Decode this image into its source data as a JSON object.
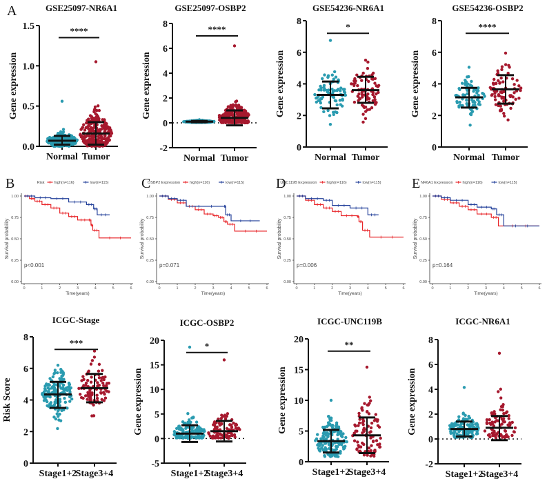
{
  "panel_letters": [
    "A",
    "B",
    "C",
    "D",
    "E"
  ],
  "colors": {
    "group1": "#2a9bb0",
    "group2": "#a6192e",
    "km_high": "#e8262a",
    "km_low": "#23409a",
    "bars": "#111111"
  },
  "chart_data": [
    {
      "type": "scatter",
      "title": "GSE25097-NR6A1",
      "ylabel": "Gene expression",
      "categories": [
        "Normal",
        "Tumor"
      ],
      "ylim": [
        0,
        1.5
      ],
      "yticks": [
        "0.0",
        "0.5",
        "1.0",
        "1.5"
      ],
      "ytick_values": [
        0,
        0.5,
        1.0,
        1.5
      ],
      "significance": "****",
      "groups": [
        {
          "mean": 0.07,
          "sd_upper": 0.13,
          "sd_lower": 0.02,
          "min": 0.0,
          "max": 0.56,
          "n": 240
        },
        {
          "mean": 0.16,
          "sd_upper": 0.3,
          "sd_lower": 0.02,
          "min": 0.0,
          "max": 1.05,
          "n": 270
        }
      ]
    },
    {
      "type": "scatter",
      "title": "GSE25097-OSBP2",
      "ylabel": "Gene expression",
      "categories": [
        "Normal",
        "Tumor"
      ],
      "ylim": [
        -2,
        8
      ],
      "yticks": [
        "-2",
        "0",
        "2",
        "4",
        "6",
        "8"
      ],
      "ytick_values": [
        -2,
        0,
        2,
        4,
        6,
        8
      ],
      "significance": "****",
      "zero_line": true,
      "groups": [
        {
          "mean": 0.1,
          "sd_upper": 0.15,
          "sd_lower": 0.05,
          "min": 0.02,
          "max": 0.25,
          "n": 240
        },
        {
          "mean": 0.4,
          "sd_upper": 1.0,
          "sd_lower": -0.2,
          "min": 0.0,
          "max": 6.2,
          "n": 270
        }
      ]
    },
    {
      "type": "scatter",
      "title": "GSE54236-NR6A1",
      "ylabel": "Gene expression",
      "categories": [
        "Normal",
        "Tumor"
      ],
      "ylim": [
        0,
        8
      ],
      "yticks": [
        "0",
        "2",
        "4",
        "6",
        "8"
      ],
      "ytick_values": [
        0,
        2,
        4,
        6,
        8
      ],
      "significance": "*",
      "groups": [
        {
          "mean": 3.3,
          "sd_upper": 4.15,
          "sd_lower": 2.45,
          "min": 1.3,
          "max": 6.75,
          "n": 80
        },
        {
          "mean": 3.6,
          "sd_upper": 4.45,
          "sd_lower": 2.8,
          "min": 1.5,
          "max": 5.5,
          "n": 81
        }
      ]
    },
    {
      "type": "scatter",
      "title": "GSE54236-OSBP2",
      "ylabel": "Gene expression",
      "categories": [
        "Normal",
        "Tumor"
      ],
      "ylim": [
        0,
        8
      ],
      "yticks": [
        "0",
        "2",
        "4",
        "6",
        "8"
      ],
      "ytick_values": [
        0,
        2,
        4,
        6,
        8
      ],
      "significance": "****",
      "groups": [
        {
          "mean": 3.15,
          "sd_upper": 3.75,
          "sd_lower": 2.5,
          "min": 1.3,
          "max": 5.05,
          "n": 80
        },
        {
          "mean": 3.65,
          "sd_upper": 4.55,
          "sd_lower": 2.75,
          "min": 1.6,
          "max": 5.95,
          "n": 81
        }
      ]
    },
    {
      "type": "line",
      "subtype": "kaplan-meier",
      "legend_title": "Risk",
      "legend": [
        "high(n=116)",
        "low(n=115)"
      ],
      "ylabel": "Survival probability",
      "xlabel": "Time(years)",
      "xlim": [
        0,
        6
      ],
      "ylim": [
        0,
        1
      ],
      "xticks": [
        "0",
        "1",
        "2",
        "3",
        "4",
        "5",
        "6"
      ],
      "yticks": [
        "0.00",
        "0.25",
        "0.50",
        "0.75",
        "1.00"
      ],
      "pvalue": "p<0.001",
      "legend_position": "top",
      "series": [
        {
          "name": "high(n=116)",
          "points": [
            [
              0,
              1
            ],
            [
              0.3,
              0.97
            ],
            [
              0.6,
              0.94
            ],
            [
              1,
              0.9
            ],
            [
              1.5,
              0.86
            ],
            [
              2,
              0.8
            ],
            [
              2.5,
              0.76
            ],
            [
              3,
              0.72
            ],
            [
              3.6,
              0.72
            ],
            [
              3.75,
              0.66
            ],
            [
              3.85,
              0.6
            ],
            [
              4.2,
              0.51
            ],
            [
              6,
              0.51
            ]
          ]
        },
        {
          "name": "low(n=115)",
          "points": [
            [
              0,
              1
            ],
            [
              0.6,
              0.98
            ],
            [
              1.5,
              0.97
            ],
            [
              2.5,
              0.93
            ],
            [
              3.5,
              0.9
            ],
            [
              3.9,
              0.85
            ],
            [
              4.1,
              0.78
            ],
            [
              4.8,
              0.78
            ]
          ]
        }
      ]
    },
    {
      "type": "line",
      "subtype": "kaplan-meier",
      "legend_title": "OSBP2 Expression",
      "legend": [
        "high(n=116)",
        "low(n=115)"
      ],
      "ylabel": "Survival probability",
      "xlabel": "Time(years)",
      "xlim": [
        0,
        6
      ],
      "ylim": [
        0,
        1
      ],
      "xticks": [
        "0",
        "1",
        "2",
        "3",
        "4",
        "5",
        "6"
      ],
      "yticks": [
        "0.00",
        "0.25",
        "0.50",
        "0.75",
        "1.00"
      ],
      "pvalue": "p=0.071",
      "legend_position": "top",
      "series": [
        {
          "name": "high(n=116)",
          "points": [
            [
              0,
              1
            ],
            [
              0.5,
              0.96
            ],
            [
              1,
              0.92
            ],
            [
              1.5,
              0.88
            ],
            [
              2,
              0.84
            ],
            [
              2.5,
              0.79
            ],
            [
              3,
              0.77
            ],
            [
              3.3,
              0.75
            ],
            [
              3.6,
              0.7
            ],
            [
              3.8,
              0.67
            ],
            [
              4.2,
              0.59
            ],
            [
              6,
              0.59
            ]
          ]
        },
        {
          "name": "low(n=115)",
          "points": [
            [
              0,
              1
            ],
            [
              0.5,
              0.97
            ],
            [
              1,
              0.95
            ],
            [
              1.5,
              0.88
            ],
            [
              3.6,
              0.88
            ],
            [
              3.7,
              0.78
            ],
            [
              4.0,
              0.71
            ],
            [
              5.6,
              0.71
            ]
          ]
        }
      ]
    },
    {
      "type": "line",
      "subtype": "kaplan-meier",
      "legend_title": "UNC119B Expression",
      "legend": [
        "high(n=116)",
        "low(n=115)"
      ],
      "ylabel": "Survival probability",
      "xlabel": "Time(years)",
      "xlim": [
        0,
        6
      ],
      "ylim": [
        0,
        1
      ],
      "xticks": [
        "0",
        "1",
        "2",
        "3",
        "4",
        "5",
        "6"
      ],
      "yticks": [
        "0.00",
        "0.25",
        "0.50",
        "0.75",
        "1.00"
      ],
      "pvalue": "p=0.006",
      "legend_position": "top",
      "series": [
        {
          "name": "high(n=116)",
          "points": [
            [
              0,
              1
            ],
            [
              0.5,
              0.95
            ],
            [
              1,
              0.9
            ],
            [
              1.5,
              0.86
            ],
            [
              2,
              0.82
            ],
            [
              2.5,
              0.77
            ],
            [
              3.4,
              0.76
            ],
            [
              3.5,
              0.7
            ],
            [
              3.7,
              0.6
            ],
            [
              4.1,
              0.52
            ],
            [
              6,
              0.52
            ]
          ]
        },
        {
          "name": "low(n=115)",
          "points": [
            [
              0,
              1
            ],
            [
              0.5,
              0.97
            ],
            [
              1.5,
              0.95
            ],
            [
              2,
              0.89
            ],
            [
              3,
              0.86
            ],
            [
              4.0,
              0.78
            ],
            [
              4.6,
              0.78
            ]
          ]
        }
      ]
    },
    {
      "type": "line",
      "subtype": "kaplan-meier",
      "legend_title": "NR6A1 Expression",
      "legend": [
        "high(n=116)",
        "low(n=115)"
      ],
      "ylabel": "Survival probability",
      "xlabel": "Time(years)",
      "xlim": [
        0,
        6
      ],
      "ylim": [
        0,
        1
      ],
      "xticks": [
        "0",
        "1",
        "2",
        "3",
        "4",
        "5",
        "6"
      ],
      "yticks": [
        "0.00",
        "0.25",
        "0.50",
        "0.75",
        "1.00"
      ],
      "pvalue": "p=0.164",
      "legend_position": "top",
      "series": [
        {
          "name": "high(n=116)",
          "points": [
            [
              0,
              1
            ],
            [
              0.5,
              0.96
            ],
            [
              1,
              0.92
            ],
            [
              1.5,
              0.88
            ],
            [
              2,
              0.84
            ],
            [
              2.5,
              0.79
            ],
            [
              3.3,
              0.75
            ],
            [
              3.7,
              0.65
            ],
            [
              6,
              0.65
            ]
          ]
        },
        {
          "name": "low(n=115)",
          "points": [
            [
              0,
              1
            ],
            [
              0.5,
              0.98
            ],
            [
              1,
              0.95
            ],
            [
              2,
              0.9
            ],
            [
              2.5,
              0.87
            ],
            [
              3.3,
              0.85
            ],
            [
              3.6,
              0.78
            ],
            [
              4.0,
              0.65
            ],
            [
              6,
              0.65
            ]
          ]
        }
      ]
    },
    {
      "type": "scatter",
      "title": "ICGC-Stage",
      "ylabel": "Risk Score",
      "categories": [
        "Stage1+2",
        "Stage3+4"
      ],
      "ylim": [
        0,
        8
      ],
      "yticks": [
        "0",
        "2",
        "4",
        "6",
        "8"
      ],
      "ytick_values": [
        0,
        2,
        4,
        6,
        8
      ],
      "significance": "***",
      "groups": [
        {
          "mean": 4.35,
          "sd_upper": 5.15,
          "sd_lower": 3.5,
          "min": 2.1,
          "max": 6.2,
          "n": 150
        },
        {
          "mean": 4.75,
          "sd_upper": 5.65,
          "sd_lower": 3.85,
          "min": 2.4,
          "max": 7.1,
          "n": 90
        }
      ]
    },
    {
      "type": "scatter",
      "title": "ICGC-OSBP2",
      "ylabel": "Gene expression",
      "categories": [
        "Stage1+2",
        "Stage3+4"
      ],
      "ylim": [
        -5,
        20
      ],
      "yticks": [
        "-5",
        "0",
        "5",
        "10",
        "15",
        "20"
      ],
      "ytick_values": [
        -5,
        0,
        5,
        10,
        15,
        20
      ],
      "significance": "*",
      "zero_line": true,
      "groups": [
        {
          "mean": 1.0,
          "sd_upper": 2.7,
          "sd_lower": -0.7,
          "min": 0.0,
          "max": 18.6,
          "n": 150
        },
        {
          "mean": 1.5,
          "sd_upper": 3.6,
          "sd_lower": -0.6,
          "min": 0.0,
          "max": 16.0,
          "n": 90
        }
      ]
    },
    {
      "type": "scatter",
      "title": "ICGC-UNC119B",
      "ylabel": "Gene expression",
      "categories": [
        "Stage1+2",
        "Stage3+4"
      ],
      "ylim": [
        0,
        20
      ],
      "yticks": [
        "0",
        "5",
        "10",
        "15",
        "20"
      ],
      "ytick_values": [
        0,
        5,
        10,
        15,
        20
      ],
      "significance": "**",
      "groups": [
        {
          "mean": 3.35,
          "sd_upper": 5.2,
          "sd_lower": 1.5,
          "min": 0.7,
          "max": 10.0,
          "n": 150
        },
        {
          "mean": 4.3,
          "sd_upper": 7.2,
          "sd_lower": 1.4,
          "min": 0.9,
          "max": 15.4,
          "n": 90
        }
      ]
    },
    {
      "type": "scatter",
      "title": "ICGC-NR6A1",
      "ylabel": "Gene expression",
      "categories": [
        "Stage1+2",
        "Stage3+4"
      ],
      "ylim": [
        -2,
        8
      ],
      "yticks": [
        "-2",
        "0",
        "2",
        "4",
        "6",
        "8"
      ],
      "ytick_values": [
        -2,
        0,
        2,
        4,
        6,
        8
      ],
      "significance": "",
      "zero_line": true,
      "groups": [
        {
          "mean": 0.8,
          "sd_upper": 1.4,
          "sd_lower": 0.2,
          "min": 0.1,
          "max": 4.15,
          "n": 150
        },
        {
          "mean": 0.9,
          "sd_upper": 1.85,
          "sd_lower": -0.1,
          "min": 0.1,
          "max": 6.9,
          "n": 90
        }
      ]
    }
  ]
}
